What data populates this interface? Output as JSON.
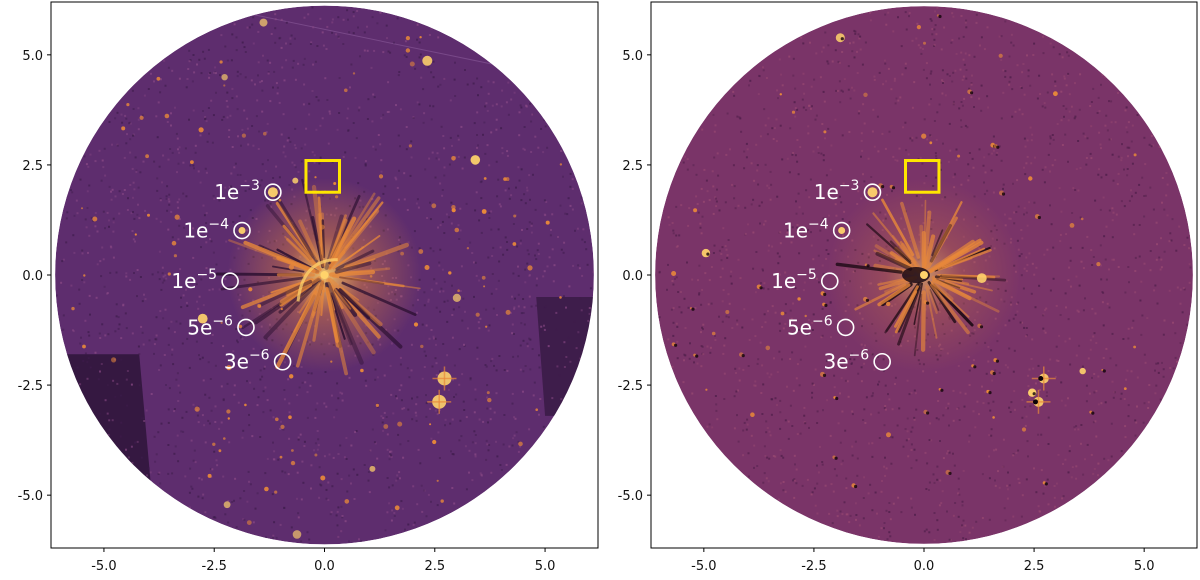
{
  "figure": {
    "colors": {
      "bg_left": "#5e2d6e",
      "bg_right": "#7a3468",
      "frame": "#000000",
      "marker_circle": "#ffffff",
      "marker_square": "#ffe600",
      "bright_source": "#ffd36b",
      "faint_source": "#e8883a"
    },
    "axis_range": [
      -6.2,
      6.2
    ],
    "x_tick_labels": [
      "-5.0",
      "-2.5",
      "0.0",
      "2.5",
      "5.0"
    ],
    "y_tick_labels": [
      "5.0",
      "2.5",
      "0.0",
      "-2.5",
      "-5.0"
    ],
    "x_tick_values": [
      -5.0,
      -2.5,
      0.0,
      2.5,
      5.0
    ],
    "y_tick_values": [
      5.0,
      2.5,
      0.0,
      -2.5,
      -5.0
    ],
    "square": {
      "x0": -0.42,
      "x1": 0.34,
      "y0": 1.88,
      "y1": 2.6
    },
    "contrast_markers": [
      {
        "base": "1e",
        "exp": "−3",
        "x": -1.17,
        "y": 1.88
      },
      {
        "base": "1e",
        "exp": "−4",
        "x": -1.87,
        "y": 1.01
      },
      {
        "base": "1e",
        "exp": "−5",
        "x": -2.14,
        "y": -0.14
      },
      {
        "base": "5e",
        "exp": "−6",
        "x": -1.78,
        "y": -1.19
      },
      {
        "base": "3e",
        "exp": "−6",
        "x": -0.95,
        "y": -1.97
      }
    ],
    "panels": [
      {
        "name": "left-panel",
        "variant": "raw"
      },
      {
        "name": "right-panel",
        "variant": "subtracted"
      }
    ]
  }
}
